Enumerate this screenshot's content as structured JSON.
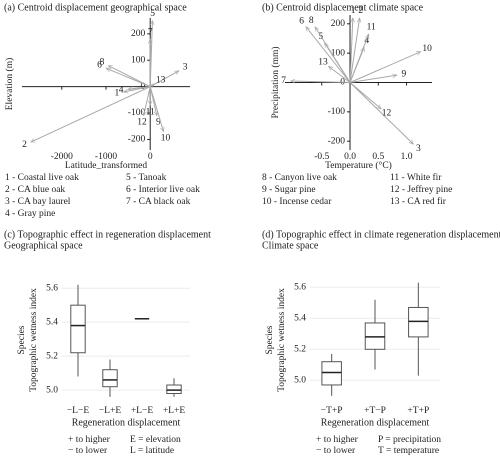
{
  "species_key": [
    "1 - Coastal live oak",
    "2 - CA blue oak",
    "3 - CA bay laurel",
    "4 - Gray pine",
    "5 - Tanoak",
    "6 - Interior live oak",
    "7 - CA black oak",
    "8 - Canyon live oak",
    "9 - Sugar pine",
    "10 - Incense cedar",
    "11 - White fir",
    "12 - Jeffrey pine",
    "13 - CA red fir"
  ],
  "chart_data": [
    {
      "type": "arrow",
      "title": "(a) Centroid displacement geographical space",
      "x_label": "Latitude_transformed",
      "y_label": "Elevation (m)",
      "labels": [
        "1",
        "2",
        "3",
        "4",
        "5",
        "6",
        "7",
        "8",
        "9",
        "10",
        "11",
        "12",
        "13"
      ],
      "x": [
        -600,
        -2700,
        650,
        -500,
        50,
        -1000,
        0,
        -950,
        150,
        300,
        0,
        -150,
        100
      ],
      "y": [
        -20,
        -210,
        60,
        -10,
        250,
        70,
        180,
        80,
        -110,
        -170,
        -70,
        -110,
        10
      ],
      "xlim": [
        -2900,
        900
      ],
      "ylim": [
        -240,
        260
      ],
      "xticks": [
        -2000,
        -1000,
        0
      ],
      "yticks": [
        -200,
        -100,
        0,
        100,
        200
      ],
      "color": "#a8a8a8"
    },
    {
      "type": "arrow",
      "title": "(b) Centroid displacement climate space",
      "x_label": "Temperature (°C)",
      "y_label": "Precipitation (mm)",
      "labels": [
        "1",
        "2",
        "3",
        "4",
        "5",
        "6",
        "7",
        "8",
        "9",
        "10",
        "11",
        "12",
        "13"
      ],
      "x": [
        0.05,
        0.17,
        1.12,
        0.25,
        -0.45,
        -0.78,
        -1.05,
        -0.62,
        0.83,
        1.25,
        0.33,
        0.55,
        -0.38
      ],
      "y": [
        220,
        220,
        -210,
        120,
        135,
        190,
        5,
        190,
        25,
        105,
        165,
        -90,
        55
      ],
      "xlim": [
        -1.15,
        1.45
      ],
      "ylim": [
        -230,
        230
      ],
      "xticks": [
        -0.5,
        {
          "value": 0,
          "label": "0.0"
        },
        0.5,
        {
          "value": 1,
          "label": "1.0"
        }
      ],
      "yticks": [
        -200,
        -100,
        0,
        100,
        200
      ],
      "color": "#a8a8a8"
    },
    {
      "type": "box",
      "title": [
        "(c) Topographic effect in regeneration displacement",
        "Geographical space"
      ],
      "x_label": "Regeneration displacement",
      "y_label": [
        "Species",
        "Topographic wetness index"
      ],
      "categories": [
        "−L−E",
        "−L+E",
        "+L−E",
        "+L+E"
      ],
      "min": [
        5.08,
        4.96,
        5.42,
        4.96
      ],
      "q1": [
        5.22,
        5.02,
        5.42,
        4.98
      ],
      "median": [
        5.38,
        5.06,
        5.42,
        5.0
      ],
      "q3": [
        5.5,
        5.12,
        5.42,
        5.03
      ],
      "max": [
        5.62,
        5.18,
        5.42,
        5.07
      ],
      "ylim": [
        4.93,
        5.66
      ],
      "yticks": [
        {
          "value": 5,
          "label": "5.0"
        },
        5.2,
        5.4,
        5.6
      ],
      "grid": true,
      "notes": [
        "+  to higher",
        "− to lower",
        "E = elevation",
        "L = latitude"
      ]
    },
    {
      "type": "box",
      "title": [
        "(d) Topographic effect in climate regeneration displacement",
        "Climate space"
      ],
      "x_label": "Regeneration displacement",
      "y_label": [
        "Species",
        "Topographic wetness index"
      ],
      "categories": [
        "−T+P",
        "+T−P",
        "+T+P"
      ],
      "min": [
        4.9,
        5.07,
        5.03
      ],
      "q1": [
        4.97,
        5.2,
        5.28
      ],
      "median": [
        5.05,
        5.28,
        5.38
      ],
      "q3": [
        5.12,
        5.37,
        5.47
      ],
      "max": [
        5.17,
        5.52,
        5.63
      ],
      "ylim": [
        4.86,
        5.66
      ],
      "yticks": [
        {
          "value": 5,
          "label": "5.0"
        },
        5.2,
        5.4,
        5.6
      ],
      "grid": true,
      "notes": [
        "+  to higher",
        "− to lower",
        "P = precipitation",
        "T = temperature"
      ]
    }
  ]
}
